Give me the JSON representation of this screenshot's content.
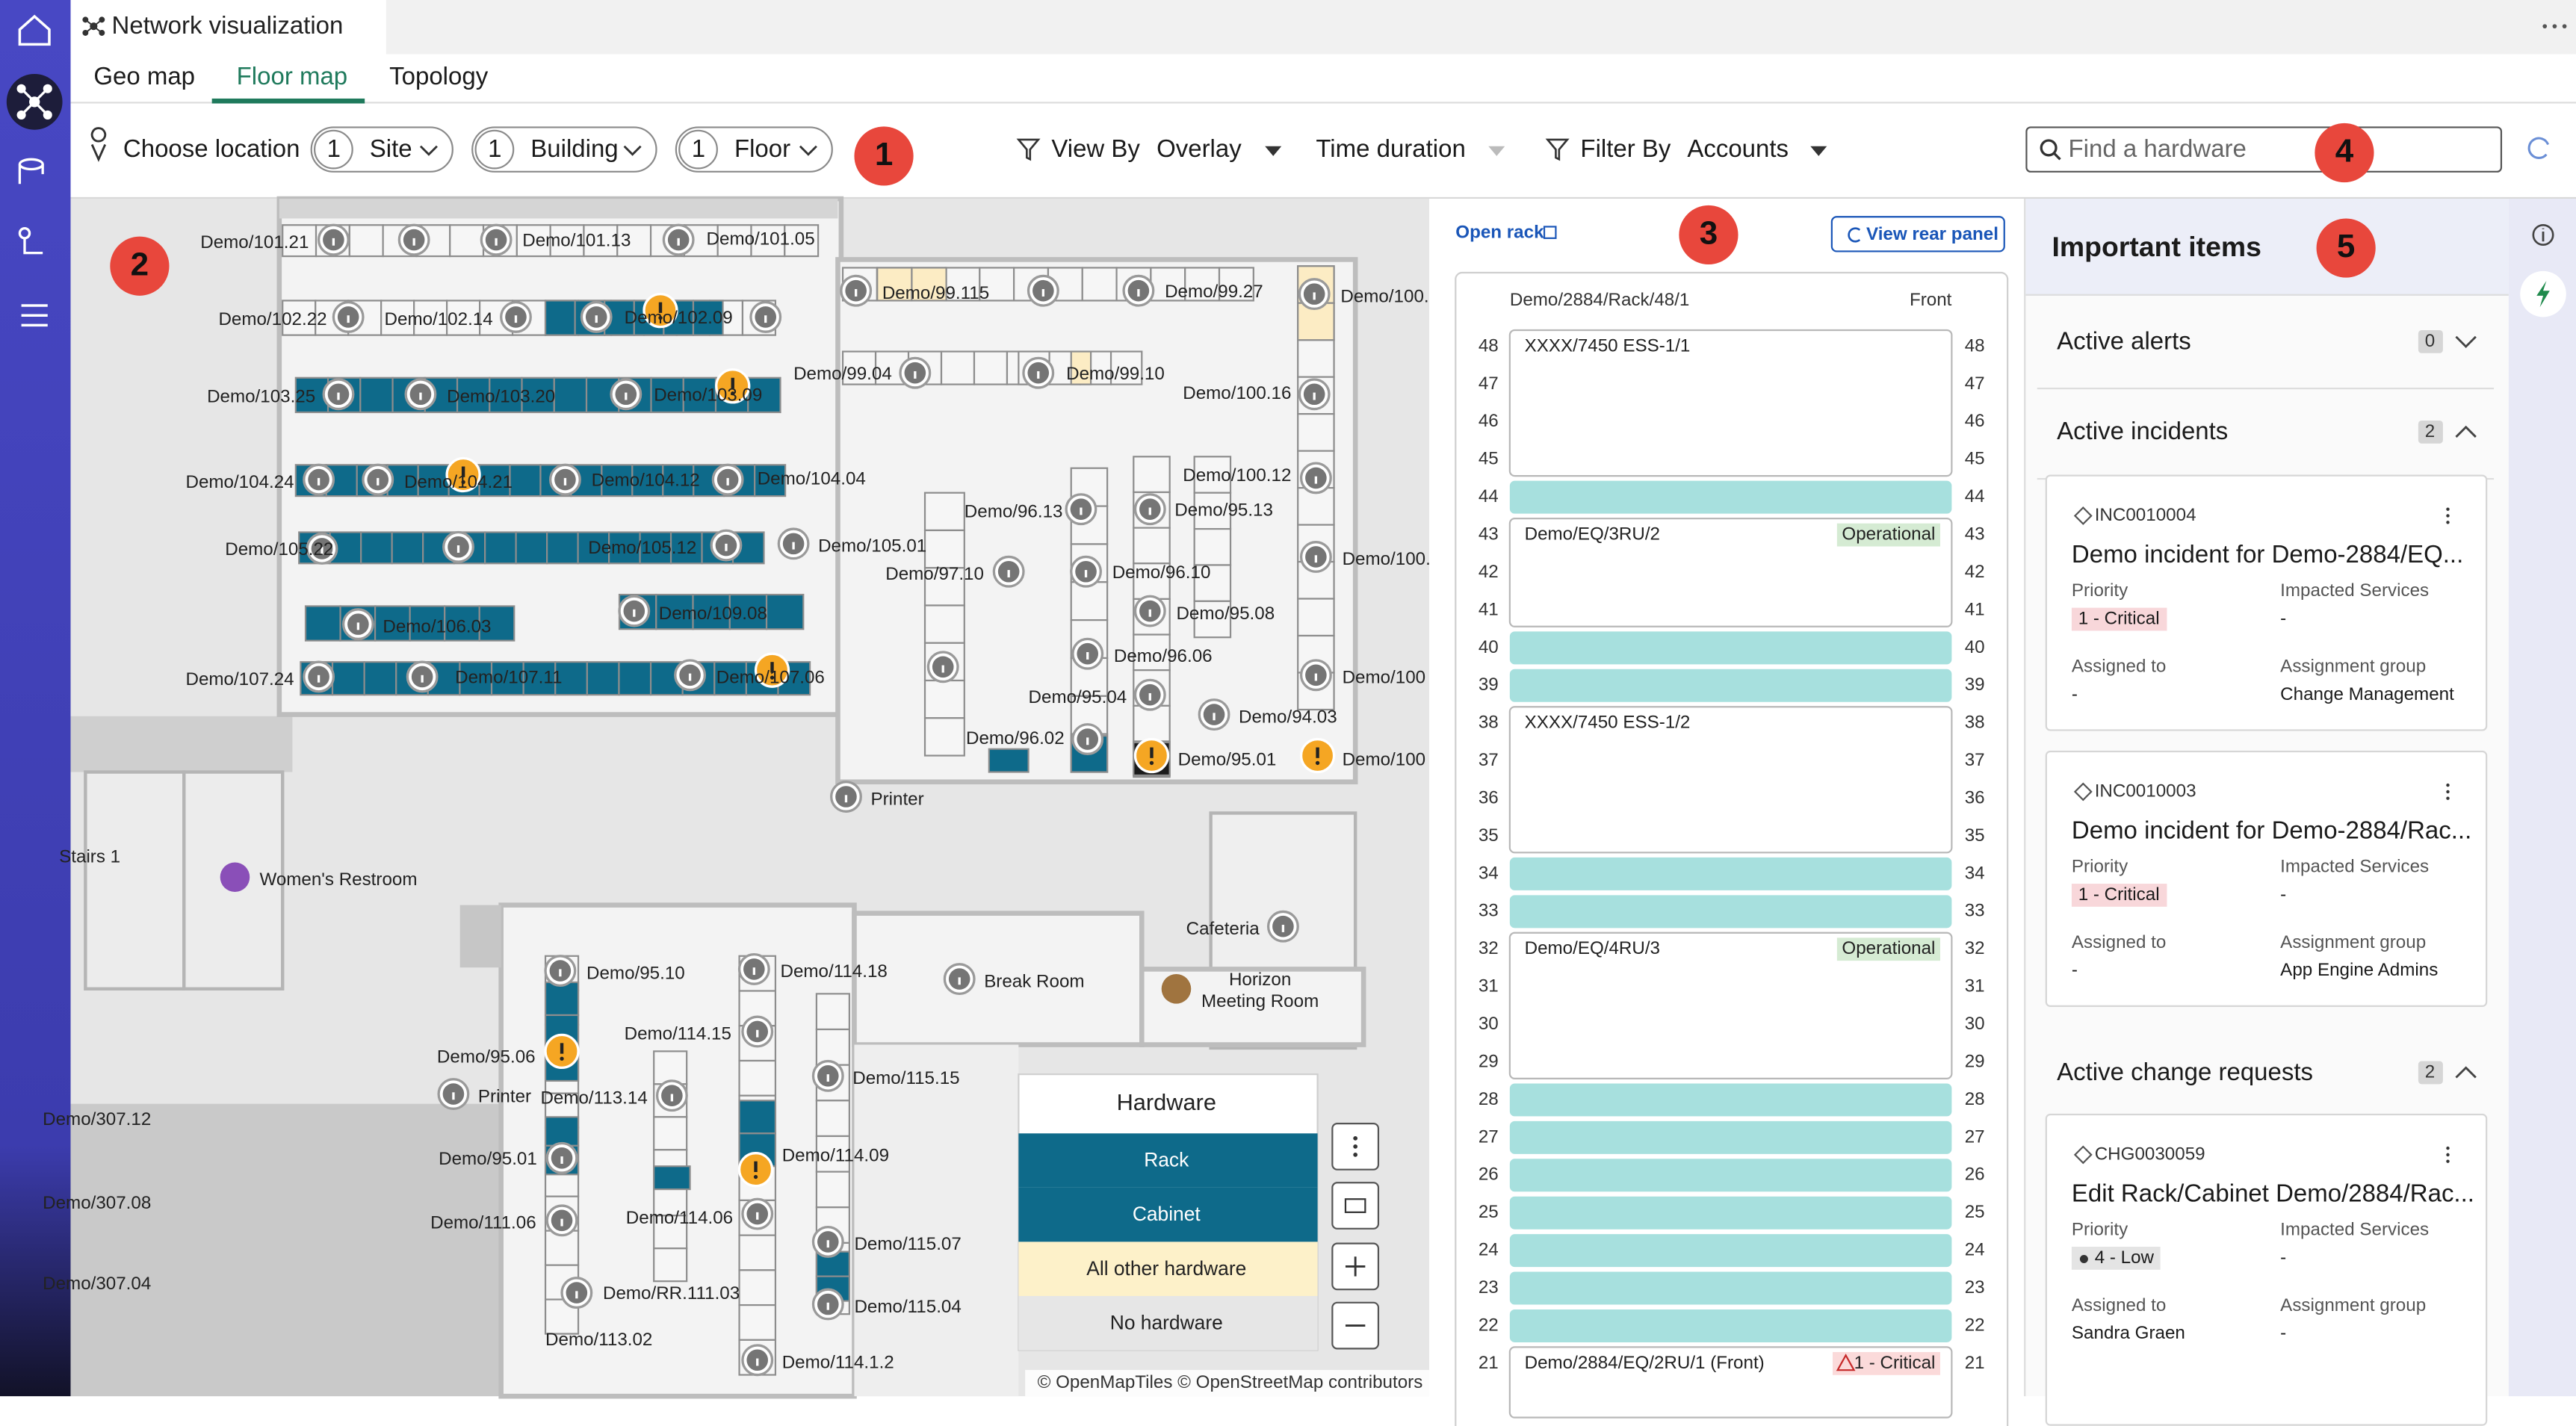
{
  "app": {
    "title": "Network visualization",
    "tabs": [
      "Geo map",
      "Floor map",
      "Topology"
    ]
  },
  "toolbar": {
    "choose_location": "Choose location",
    "site_count": 1,
    "site": "Site",
    "building_count": 1,
    "building": "Building",
    "floor_count": 1,
    "floor": "Floor",
    "view_by": "View By",
    "overlay": "Overlay",
    "time_duration": "Time duration",
    "filter_by": "Filter By",
    "accounts": "Accounts",
    "search_placeholder": "Find a hardware"
  },
  "callouts": [
    1,
    2,
    3,
    4,
    5
  ],
  "map": {
    "labels": [
      "Demo/101.21",
      "Demo/101.13",
      "Demo/101.05",
      "Demo/102.22",
      "Demo/102.14",
      "Demo/102.09",
      "Demo/103.25",
      "Demo/103.20",
      "Demo/103.09",
      "Demo/104.24",
      "Demo/104.21",
      "Demo/104.12",
      "Demo/104.04",
      "Demo/105.22",
      "Demo/105.12",
      "Demo/105.01",
      "Demo/106.03",
      "Demo/109.08",
      "Demo/107.24",
      "Demo/107.11",
      "Demo/107.06",
      "Demo/99.115",
      "Demo/99.27",
      "Demo/100.",
      "Demo/99.04",
      "Demo/99.10",
      "Demo/100.16",
      "Demo/100.12",
      "Demo/96.13",
      "Demo/95.13",
      "Demo/97.10",
      "Demo/96.10",
      "Demo/100.",
      "Demo/95.08",
      "Demo/96.06",
      "Demo/100",
      "Demo/95.04",
      "Demo/94.03",
      "Demo/96.02",
      "Demo/95.01",
      "Demo/100",
      "Demo/95.10",
      "Demo/114.18",
      "Demo/114.15",
      "Demo/95.06",
      "Demo/115.15",
      "Demo/113.14",
      "Demo/95.01",
      "Demo/114.09",
      "Demo/111.06",
      "Demo/114.06",
      "Demo/115.07",
      "Demo/RR.111.03",
      "Demo/115.04",
      "Demo/113.02",
      "Demo/114.1.2",
      "Demo/307.12",
      "Demo/307.08",
      "Demo/307.04"
    ],
    "places": [
      "Printer",
      "Stairs 1",
      "Women's Restroom",
      "Cafeteria",
      "Break Room",
      "Horizon",
      "Meeting Room",
      "Printer"
    ],
    "legend": {
      "title": "Hardware",
      "items": [
        "Rack",
        "Cabinet",
        "All other hardware",
        "No hardware"
      ]
    },
    "attribution": "© OpenMapTiles © OpenStreetMap contributors"
  },
  "rack": {
    "open_rack": "Open rack",
    "view_rear": "View rear panel",
    "name": "Demo/2884/Rack/48/1",
    "side": "Front",
    "units": [
      48,
      47,
      46,
      45,
      44,
      43,
      42,
      41,
      40,
      39,
      38,
      37,
      36,
      35,
      34,
      33,
      32,
      31,
      30,
      29,
      28,
      27,
      26,
      25,
      24,
      23,
      22,
      21
    ],
    "devices": [
      {
        "name": "XXXX/7450 ESS-1/1"
      },
      {
        "name": "Demo/EQ/3RU/2",
        "status": "Operational"
      },
      {
        "name": "XXXX/7450 ESS-1/2"
      },
      {
        "name": "Demo/EQ/4RU/3",
        "status": "Operational"
      },
      {
        "name": "Demo/2884/EQ/2RU/1 (Front)",
        "status": "1 - Critical"
      }
    ]
  },
  "important": {
    "title": "Important items",
    "sections": [
      {
        "title": "Active alerts",
        "count": 0,
        "cards": []
      },
      {
        "title": "Active incidents",
        "count": 2,
        "cards": [
          {
            "id": "INC0010004",
            "title": "Demo incident for Demo-2884/EQ...",
            "fields": [
              {
                "label": "Priority",
                "value": "1 - Critical"
              },
              {
                "label": "Impacted Services",
                "value": "-"
              },
              {
                "label": "Assigned to",
                "value": "-"
              },
              {
                "label": "Assignment group",
                "value": "Change Management"
              }
            ]
          },
          {
            "id": "INC0010003",
            "title": "Demo incident for Demo-2884/Rac...",
            "fields": [
              {
                "label": "Priority",
                "value": "1 - Critical"
              },
              {
                "label": "Impacted Services",
                "value": "-"
              },
              {
                "label": "Assigned to",
                "value": "-"
              },
              {
                "label": "Assignment group",
                "value": "App Engine Admins"
              }
            ]
          }
        ]
      },
      {
        "title": "Active change requests",
        "count": 2,
        "cards": [
          {
            "id": "CHG0030059",
            "title": "Edit Rack/Cabinet Demo/2884/Rac...",
            "fields": [
              {
                "label": "Priority",
                "value": "4 - Low"
              },
              {
                "label": "Impacted Services",
                "value": "-"
              },
              {
                "label": "Assigned to",
                "value": "Sandra Graen"
              },
              {
                "label": "Assignment group",
                "value": "-"
              }
            ]
          }
        ]
      }
    ]
  }
}
